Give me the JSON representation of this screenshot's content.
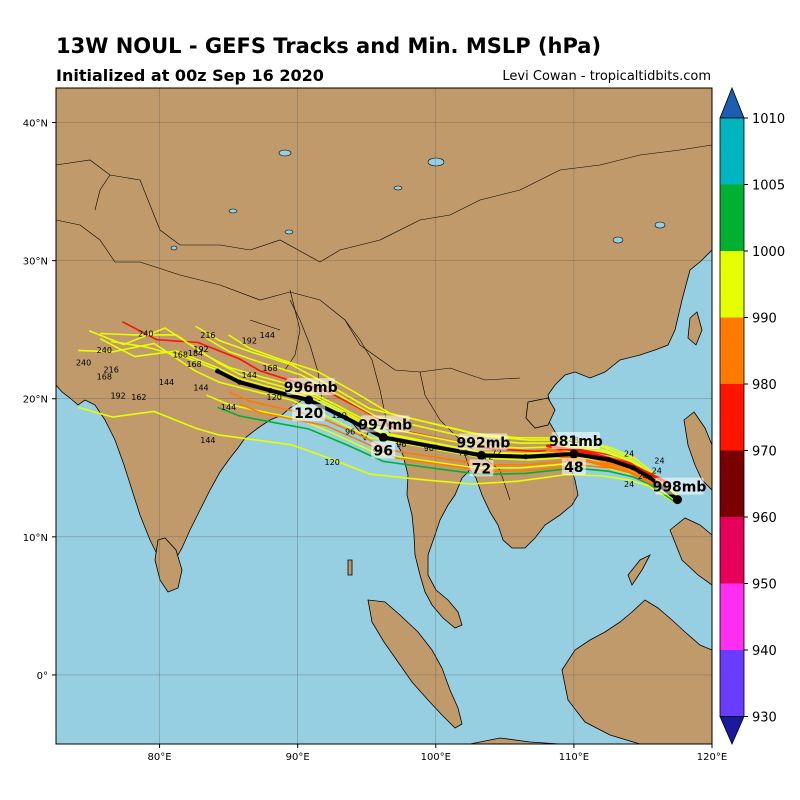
{
  "header": {
    "title": "13W NOUL - GEFS Tracks and Min. MSLP (hPa)",
    "subtitle": "Initialized at 00z Sep 16 2020",
    "credit": "Levi Cowan - tropicaltidbits.com"
  },
  "map": {
    "lon_range": [
      72.5,
      120
    ],
    "lat_range": [
      -5,
      42.5
    ],
    "lon_ticks": [
      "80°E",
      "90°E",
      "100°E",
      "110°E",
      "120°E"
    ],
    "lat_ticks": [
      "40°N",
      "30°N",
      "20°N",
      "10°N",
      "0°"
    ],
    "ocean_color": "#97cfe2",
    "land_color": "#c09a6b",
    "grid": true
  },
  "colorbar": {
    "ticks": [
      "1010",
      "1005",
      "1000",
      "990",
      "980",
      "970",
      "960",
      "950",
      "940",
      "930"
    ],
    "colors": [
      "#00b4c0",
      "#00b030",
      "#e6ff00",
      "#ff7a00",
      "#ff1400",
      "#780000",
      "#e6005c",
      "#ff2ef0",
      "#6a3cff",
      "#1a1aa0"
    ],
    "top_cap_color": "#1a5fb4"
  },
  "ensemble_mean": {
    "points": [
      {
        "lon": 117.5,
        "lat": 12.7,
        "label": "998mb"
      },
      {
        "lon": 110.0,
        "lat": 16.0,
        "label": "981mb",
        "hour": "48"
      },
      {
        "lon": 103.3,
        "lat": 15.9,
        "label": "992mb",
        "hour": "72"
      },
      {
        "lon": 96.2,
        "lat": 17.2,
        "label": "997mb",
        "hour": "96"
      },
      {
        "lon": 90.8,
        "lat": 19.9,
        "label": "996mb",
        "hour": "120"
      }
    ],
    "track": [
      [
        117.5,
        12.7
      ],
      [
        115.5,
        14.3
      ],
      [
        114.3,
        15.0
      ],
      [
        112.5,
        15.6
      ],
      [
        110.0,
        16.0
      ],
      [
        106.5,
        15.8
      ],
      [
        103.3,
        15.9
      ],
      [
        100.0,
        16.5
      ],
      [
        96.2,
        17.2
      ],
      [
        93.5,
        18.6
      ],
      [
        90.8,
        19.9
      ],
      [
        88.0,
        20.6
      ],
      [
        85.8,
        21.2
      ],
      [
        84.2,
        22.0
      ]
    ]
  },
  "member_labels": [
    "24",
    "24",
    "24",
    "24",
    "24",
    "48",
    "72",
    "72",
    "72",
    "96",
    "96",
    "96",
    "90",
    "120",
    "120",
    "120",
    "144",
    "144",
    "144",
    "144",
    "144",
    "168",
    "168",
    "168",
    "192",
    "192",
    "192",
    "216",
    "216",
    "240",
    "240",
    "240",
    "162",
    "184",
    "144",
    "168"
  ]
}
